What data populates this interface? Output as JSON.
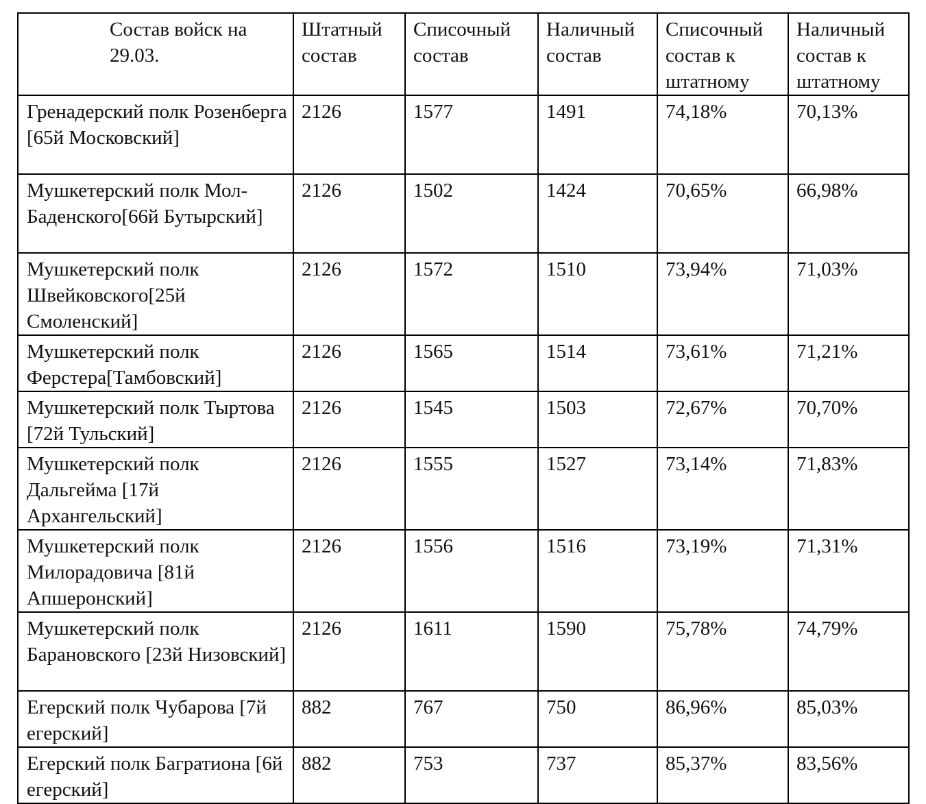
{
  "table": {
    "header": [
      "Состав войск на 29.03.",
      "Штатный состав",
      "Списочный состав",
      "Наличный состав",
      "Списочный состав к штатному",
      "Наличный состав к штатному"
    ],
    "rows": [
      [
        "Гренадерский полк Розенберга [65й Московский]",
        "2126",
        "1577",
        "1491",
        "74,18%",
        "70,13%"
      ],
      [
        "Мушкетерский полк Мол-Баденского[66й Бутырский]",
        "2126",
        "1502",
        "1424",
        "70,65%",
        "66,98%"
      ],
      [
        "Мушкетерский полк Швейковского[25й Смоленский]",
        "2126",
        "1572",
        "1510",
        "73,94%",
        "71,03%"
      ],
      [
        "Мушкетерский полк Ферстера[Тамбовский]",
        "2126",
        "1565",
        "1514",
        "73,61%",
        "71,21%"
      ],
      [
        "Мушкетерский полк Тыртова [72й Тульский]",
        "2126",
        "1545",
        "1503",
        "72,67%",
        "70,70%"
      ],
      [
        "Мушкетерский полк Дальгейма [17й Архангельский]",
        "2126",
        "1555",
        "1527",
        "73,14%",
        "71,83%"
      ],
      [
        "Мушкетерский полк Милорадовича [81й Апшеронский]",
        "2126",
        "1556",
        "1516",
        "73,19%",
        "71,31%"
      ],
      [
        "Мушкетерский полк Барановского [23й Низовский]",
        "2126",
        "1611",
        "1590",
        "75,78%",
        "74,79%"
      ],
      [
        "Егерский полк Чубарова [7й егерский]",
        "882",
        "767",
        "750",
        "86,96%",
        "85,03%"
      ],
      [
        "Егерский полк Багратиона [6й егерский]",
        "882",
        "753",
        "737",
        "85,37%",
        "83,56%"
      ]
    ]
  }
}
